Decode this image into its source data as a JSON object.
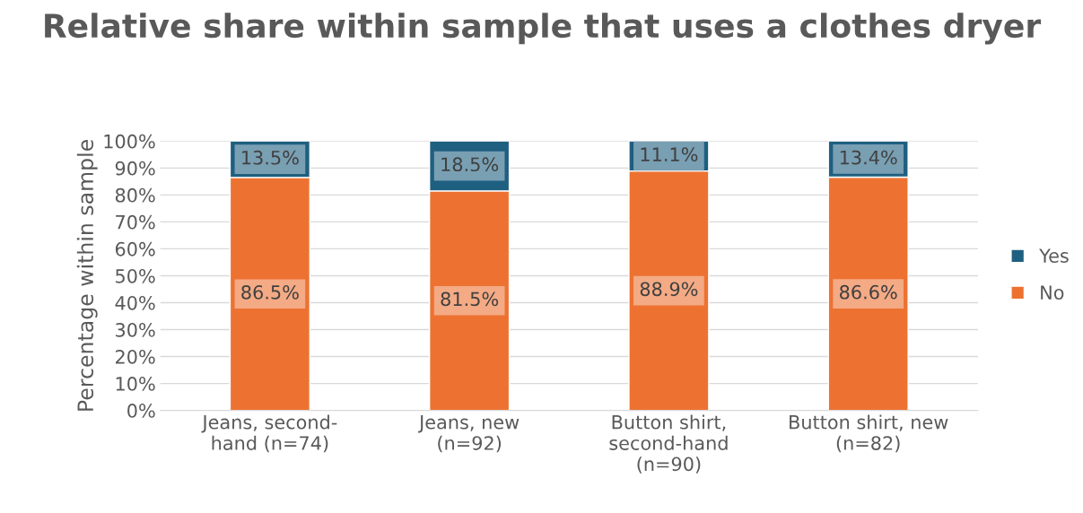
{
  "chart_data": {
    "type": "bar",
    "title": "Relative share within sample that uses a clothes dryer",
    "ylabel": "Percentage within sample",
    "categories": [
      "Jeans, second-\nhand (n=74)",
      "Jeans, new\n(n=92)",
      "Button shirt,\nsecond-hand\n(n=90)",
      "Button shirt, new\n(n=82)"
    ],
    "stacked": true,
    "series": [
      {
        "name": "No",
        "color": "#ed7232",
        "values": [
          86.5,
          81.5,
          88.9,
          86.6
        ],
        "value_labels": [
          "86.5%",
          "81.5%",
          "88.9%",
          "86.6%"
        ]
      },
      {
        "name": "Yes",
        "color": "#1f5f80",
        "values": [
          13.5,
          18.5,
          11.1,
          13.4
        ],
        "value_labels": [
          "13.5%",
          "18.5%",
          "11.1%",
          "13.4%"
        ]
      }
    ],
    "ylim": [
      0,
      100
    ],
    "yticks": [
      {
        "value": 0,
        "label": "0%"
      },
      {
        "value": 10,
        "label": "10%"
      },
      {
        "value": 20,
        "label": "20%"
      },
      {
        "value": 30,
        "label": "30%"
      },
      {
        "value": 40,
        "label": "40%"
      },
      {
        "value": 50,
        "label": "50%"
      },
      {
        "value": 60,
        "label": "60%"
      },
      {
        "value": 70,
        "label": "70%"
      },
      {
        "value": 80,
        "label": "80%"
      },
      {
        "value": 90,
        "label": "90%"
      },
      {
        "value": 100,
        "label": "100%"
      }
    ],
    "grid": "y",
    "legend": "right"
  }
}
